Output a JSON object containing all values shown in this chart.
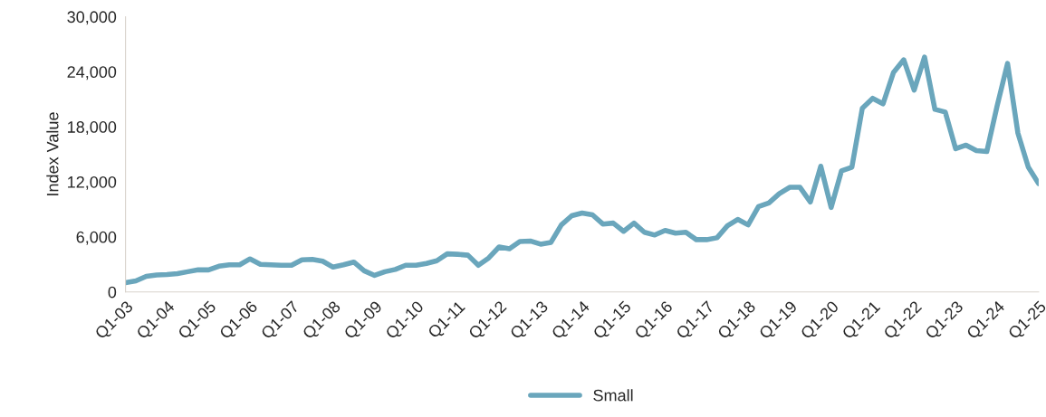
{
  "chart_data": {
    "type": "line",
    "ylabel": "Index Value",
    "categories": [
      "Q1-03",
      null,
      null,
      null,
      "Q1-04",
      null,
      null,
      null,
      "Q1-05",
      null,
      null,
      null,
      "Q1-06",
      null,
      null,
      null,
      "Q1-07",
      null,
      null,
      null,
      "Q1-08",
      null,
      null,
      null,
      "Q1-09",
      null,
      null,
      null,
      "Q1-10",
      null,
      null,
      null,
      "Q1-11",
      null,
      null,
      null,
      "Q1-12",
      null,
      null,
      null,
      "Q1-13",
      null,
      null,
      null,
      "Q1-14",
      null,
      null,
      null,
      "Q1-15",
      null,
      null,
      null,
      "Q1-16",
      null,
      null,
      null,
      "Q1-17",
      null,
      null,
      null,
      "Q1-18",
      null,
      null,
      null,
      "Q1-19",
      null,
      null,
      null,
      "Q1-20",
      null,
      null,
      null,
      "Q1-21",
      null,
      null,
      null,
      "Q1-22",
      null,
      null,
      null,
      "Q1-23",
      null,
      null,
      null,
      "Q1-24",
      null,
      null,
      null,
      "Q1-25"
    ],
    "series": [
      {
        "name": "Small",
        "color": "#6aa6bc",
        "values": [
          1000,
          1200,
          1700,
          1850,
          1900,
          2000,
          2200,
          2400,
          2400,
          2800,
          2950,
          2950,
          3600,
          3000,
          2950,
          2900,
          2900,
          3500,
          3550,
          3350,
          2700,
          2950,
          3250,
          2300,
          1800,
          2200,
          2450,
          2900,
          2900,
          3100,
          3400,
          4150,
          4100,
          4000,
          2900,
          3700,
          4900,
          4700,
          5500,
          5550,
          5200,
          5400,
          7300,
          8300,
          8600,
          8400,
          7400,
          7500,
          6600,
          7500,
          6500,
          6200,
          6700,
          6400,
          6500,
          5700,
          5700,
          5900,
          7200,
          7900,
          7300,
          9300,
          9700,
          10700,
          11400,
          11400,
          9800,
          13700,
          9200,
          13200,
          13600,
          20000,
          21100,
          20500,
          23900,
          25300,
          22000,
          25600,
          19900,
          19600,
          15600,
          16000,
          15400,
          15300,
          20300,
          24900,
          17300,
          13600,
          11800
        ]
      }
    ],
    "ylim": [
      0,
      30000
    ],
    "yticks": [
      {
        "value": 0,
        "label": "0"
      },
      {
        "value": 6000,
        "label": "6,000"
      },
      {
        "value": 12000,
        "label": "12,000"
      },
      {
        "value": 18000,
        "label": "18,000"
      },
      {
        "value": 24000,
        "label": "24,000"
      },
      {
        "value": 30000,
        "label": "30,000"
      }
    ],
    "grid": false,
    "legend": "bottom",
    "line_style": "solid",
    "marker": "none"
  }
}
